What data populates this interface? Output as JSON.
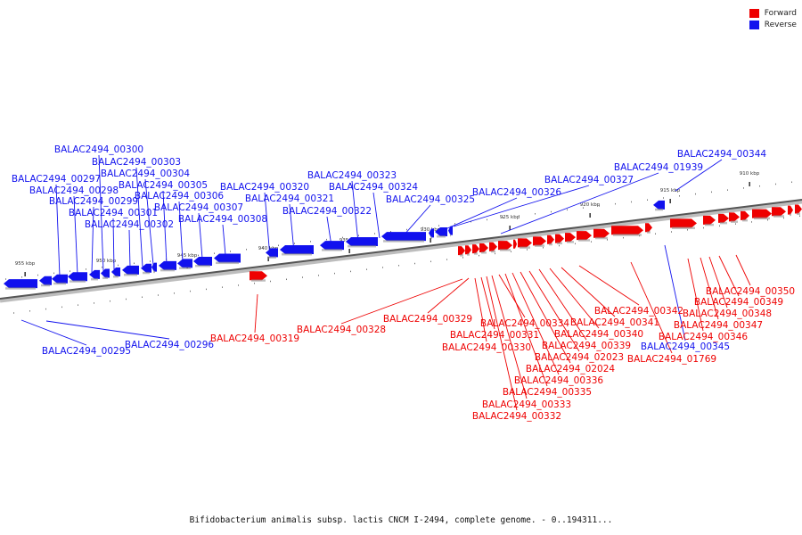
{
  "legend": {
    "forward_label": "Forward",
    "reverse_label": "Reverse",
    "forward_color": "#ee0000",
    "reverse_color": "#1111ee"
  },
  "caption": "Bifidobacterium animalis subsp. lactis CNCM I-2494, complete genome. - 0..194311...",
  "axis_ticks": [
    "955 kbp",
    "950 kbp",
    "945 kbp",
    "940 kbp",
    "935 kbp",
    "930 kbp",
    "925 kbp",
    "920 kbp",
    "915 kbp",
    "910 kbp"
  ],
  "genes": {
    "reverse": [
      "BALAC2494_00295",
      "BALAC2494_00296",
      "BALAC2494_00297",
      "BALAC2494_00298",
      "BALAC2494_00299",
      "BALAC2494_00300",
      "BALAC2494_00301",
      "BALAC2494_00302",
      "BALAC2494_00303",
      "BALAC2494_00304",
      "BALAC2494_00305",
      "BALAC2494_00306",
      "BALAC2494_00307",
      "BALAC2494_00308",
      "BALAC2494_00320",
      "BALAC2494_00321",
      "BALAC2494_00322",
      "BALAC2494_00323",
      "BALAC2494_00324",
      "BALAC2494_00325",
      "BALAC2494_00326",
      "BALAC2494_00327",
      "BALAC2494_01939",
      "BALAC2494_00344",
      "BALAC2494_00345"
    ],
    "forward": [
      "BALAC2494_00319",
      "BALAC2494_00328",
      "BALAC2494_00329",
      "BALAC2494_00330",
      "BALAC2494_00331",
      "BALAC2494_00332",
      "BALAC2494_00333",
      "BALAC2494_00334",
      "BALAC2494_00335",
      "BALAC2494_00336",
      "BALAC2494_02024",
      "BALAC2494_02023",
      "BALAC2494_00339",
      "BALAC2494_00340",
      "BALAC2494_00341",
      "BALAC2494_00342",
      "BALAC2494_01769",
      "BALAC2494_00346",
      "BALAC2494_00347",
      "BALAC2494_00348",
      "BALAC2494_00349",
      "BALAC2494_00350"
    ]
  }
}
